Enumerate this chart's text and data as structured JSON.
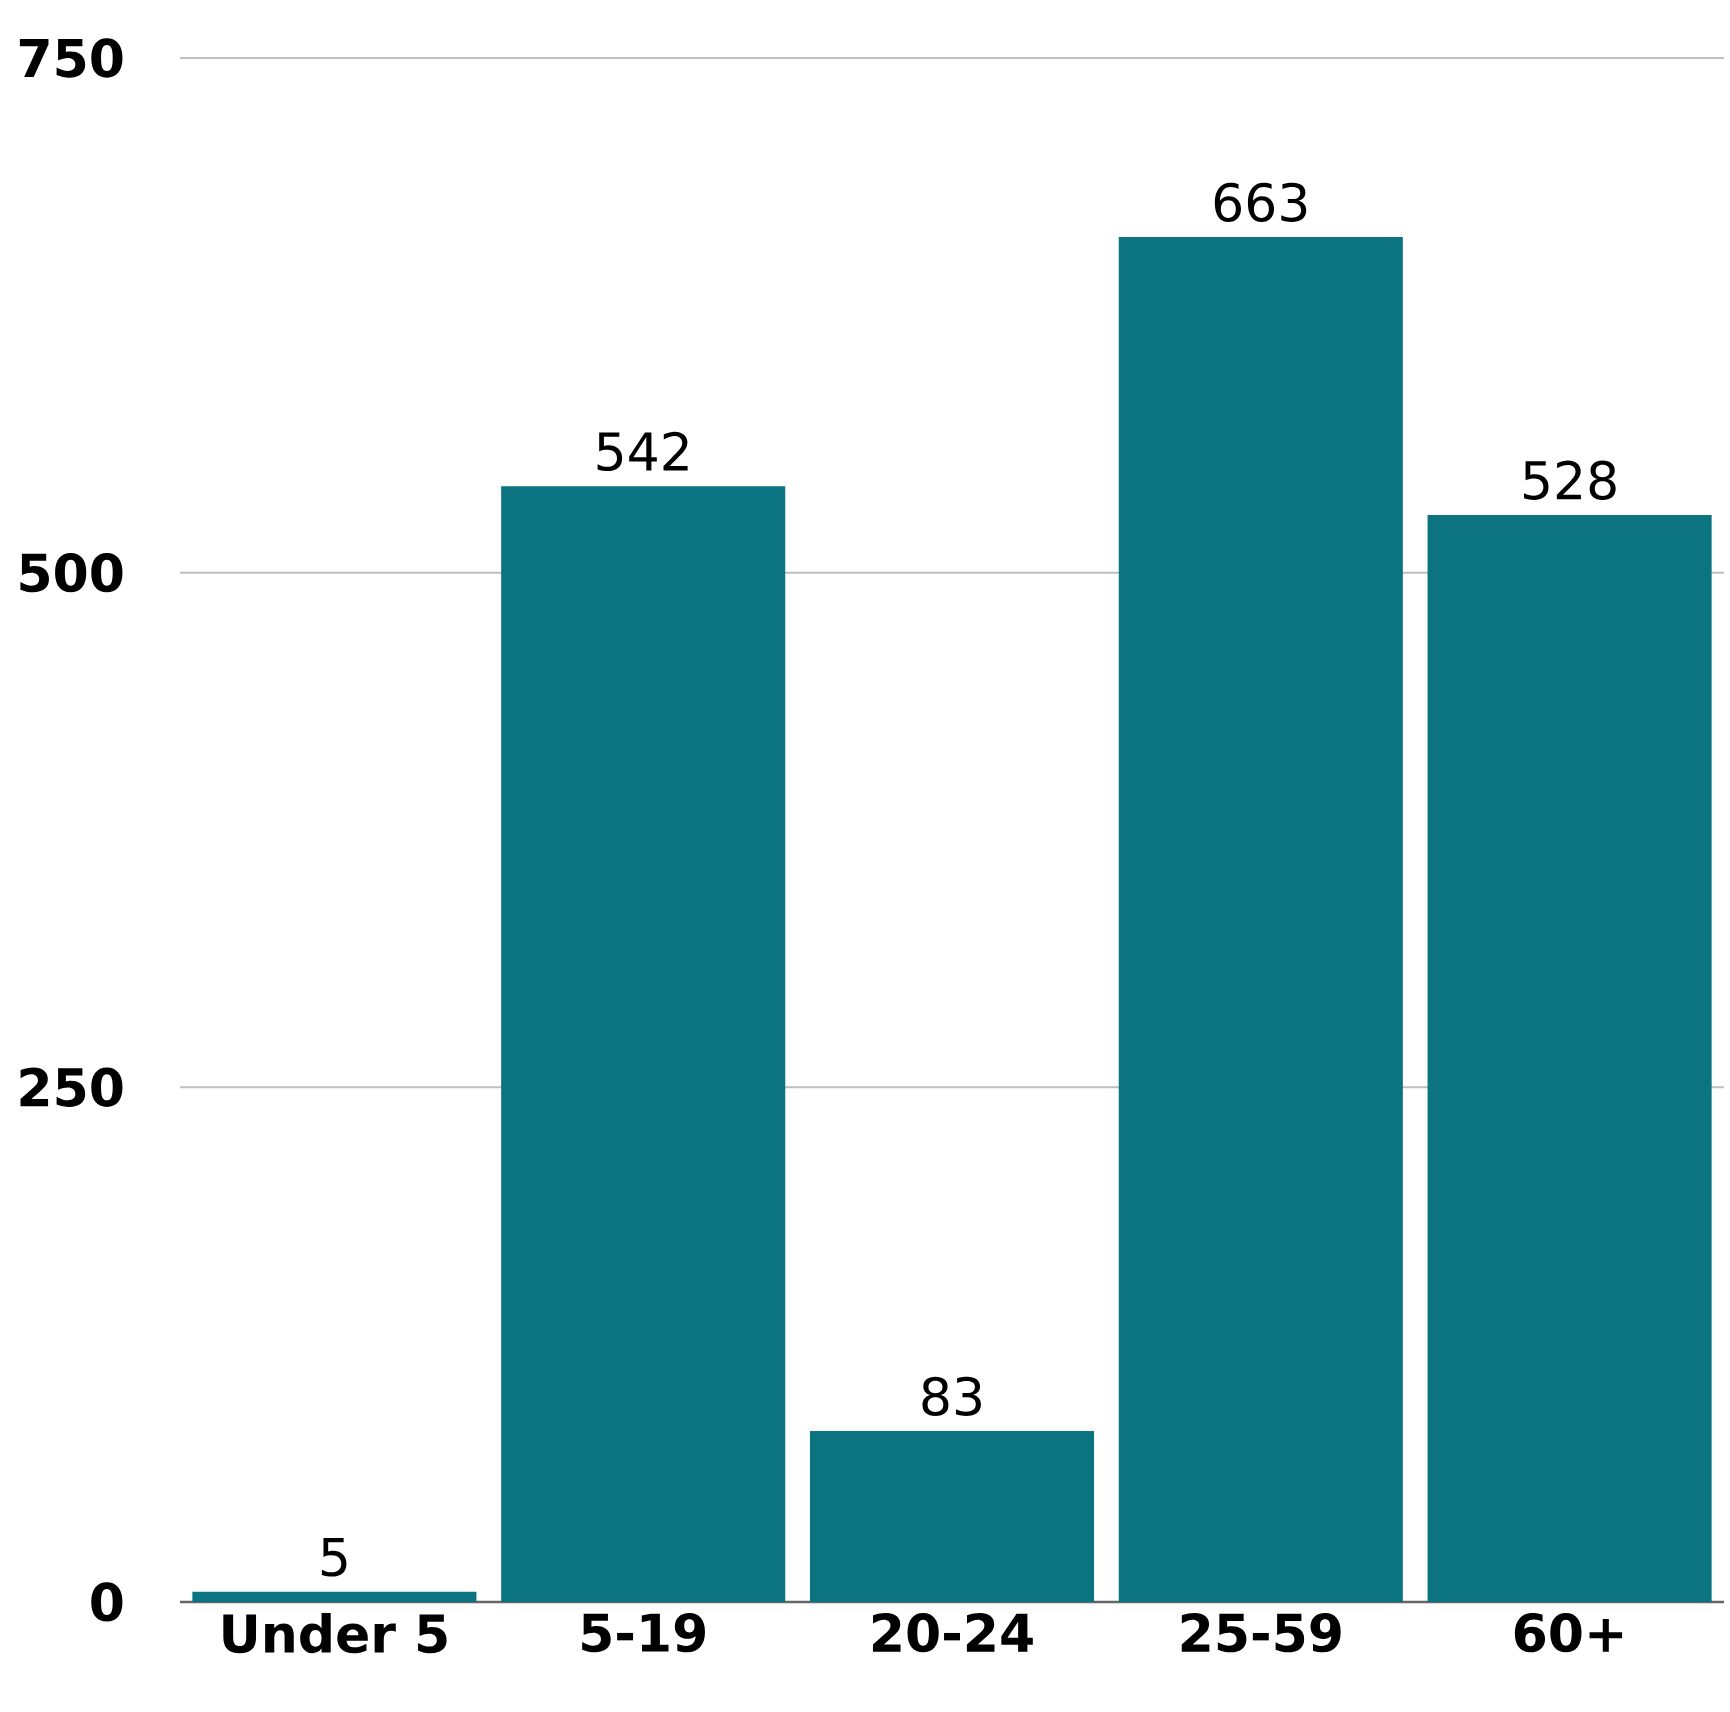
{
  "chart_data": {
    "type": "bar",
    "categories": [
      "Under 5",
      "5-19",
      "20-24",
      "25-59",
      "60+"
    ],
    "values": [
      5,
      542,
      83,
      663,
      528
    ],
    "color": "#0b7480",
    "ylim": [
      0,
      750
    ],
    "yticks": [
      0,
      250,
      500,
      750
    ],
    "grid": "y",
    "data_labels": true
  }
}
